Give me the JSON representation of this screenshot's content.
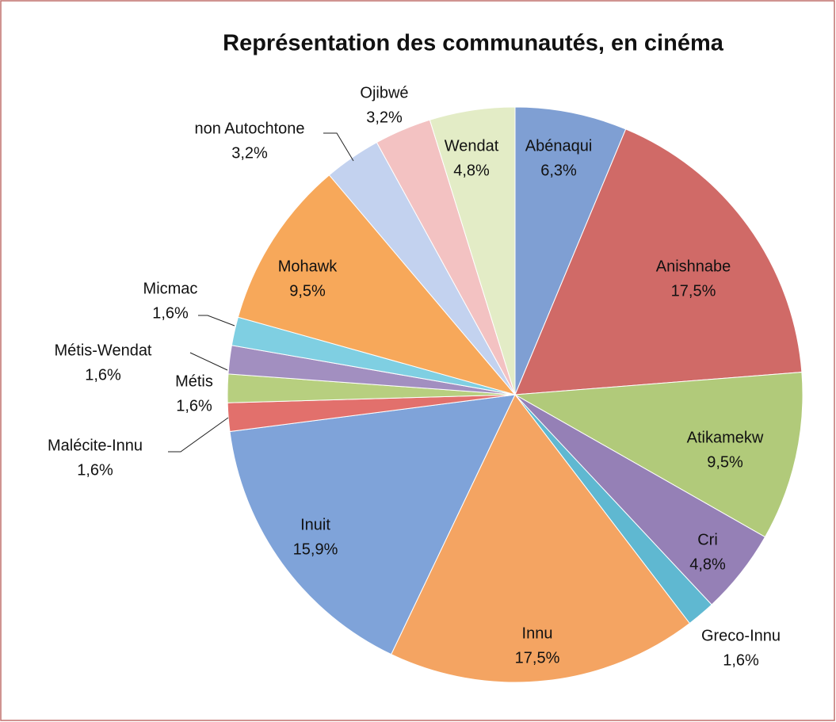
{
  "chart_data": {
    "type": "pie",
    "title": "Représentation des communautés, en cinéma",
    "categories": [
      "Abénaqui",
      "Anishnabe",
      "Atikamekw",
      "Cri",
      "Greco-Innu",
      "Innu",
      "Inuit",
      "Malécite-Innu",
      "Métis",
      "Métis-Wendat",
      "Micmac",
      "Mohawk",
      "non Autochtone",
      "Ojibwé",
      "Wendat"
    ],
    "values": [
      6.3,
      17.5,
      9.5,
      4.8,
      1.6,
      17.5,
      15.9,
      1.6,
      1.6,
      1.6,
      1.6,
      9.5,
      3.2,
      3.2,
      4.8
    ],
    "value_labels": [
      "6,3%",
      "17,5%",
      "9,5%",
      "4,8%",
      "1,6%",
      "17,5%",
      "15,9%",
      "1,6%",
      "1,6%",
      "1,6%",
      "1,6%",
      "9,5%",
      "3,2%",
      "3,2%",
      "4,8%"
    ],
    "colors": [
      "#7f9fd3",
      "#d06a67",
      "#b1ca7a",
      "#9580b6",
      "#5fb8d1",
      "#f4a462",
      "#7fa3d9",
      "#e2706c",
      "#b7cf7f",
      "#a28fc0",
      "#7fcfe2",
      "#f7a85a",
      "#c3d2ef",
      "#f3c2c2",
      "#e3ecc6"
    ]
  }
}
